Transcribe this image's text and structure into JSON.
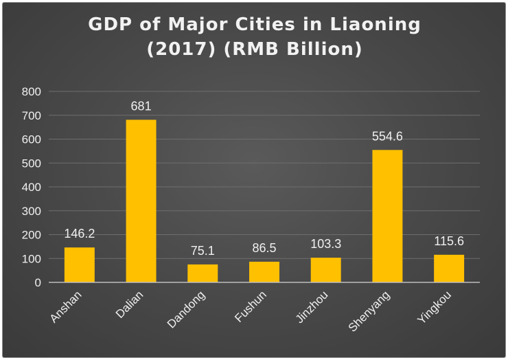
{
  "chart_data": {
    "type": "bar",
    "title_lines": [
      "GDP of Major Cities in Liaoning",
      "(2017) (RMB Billion)"
    ],
    "categories": [
      "Anshan",
      "Dalian",
      "Dandong",
      "Fushun",
      "Jinzhou",
      "Shenyang",
      "Yingkou"
    ],
    "values": [
      146.2,
      681,
      75.1,
      86.5,
      103.3,
      554.6,
      115.6
    ],
    "value_labels": [
      "146.2",
      "681",
      "75.1",
      "86.5",
      "103.3",
      "554.6",
      "115.6"
    ],
    "y_ticks": [
      "0",
      "100",
      "200",
      "300",
      "400",
      "500",
      "600",
      "700",
      "800"
    ],
    "ylim": [
      0,
      800
    ],
    "grid": true,
    "bar_color": "#FFC000",
    "background_color": "#484848",
    "text_color": "#F0F0F0"
  }
}
